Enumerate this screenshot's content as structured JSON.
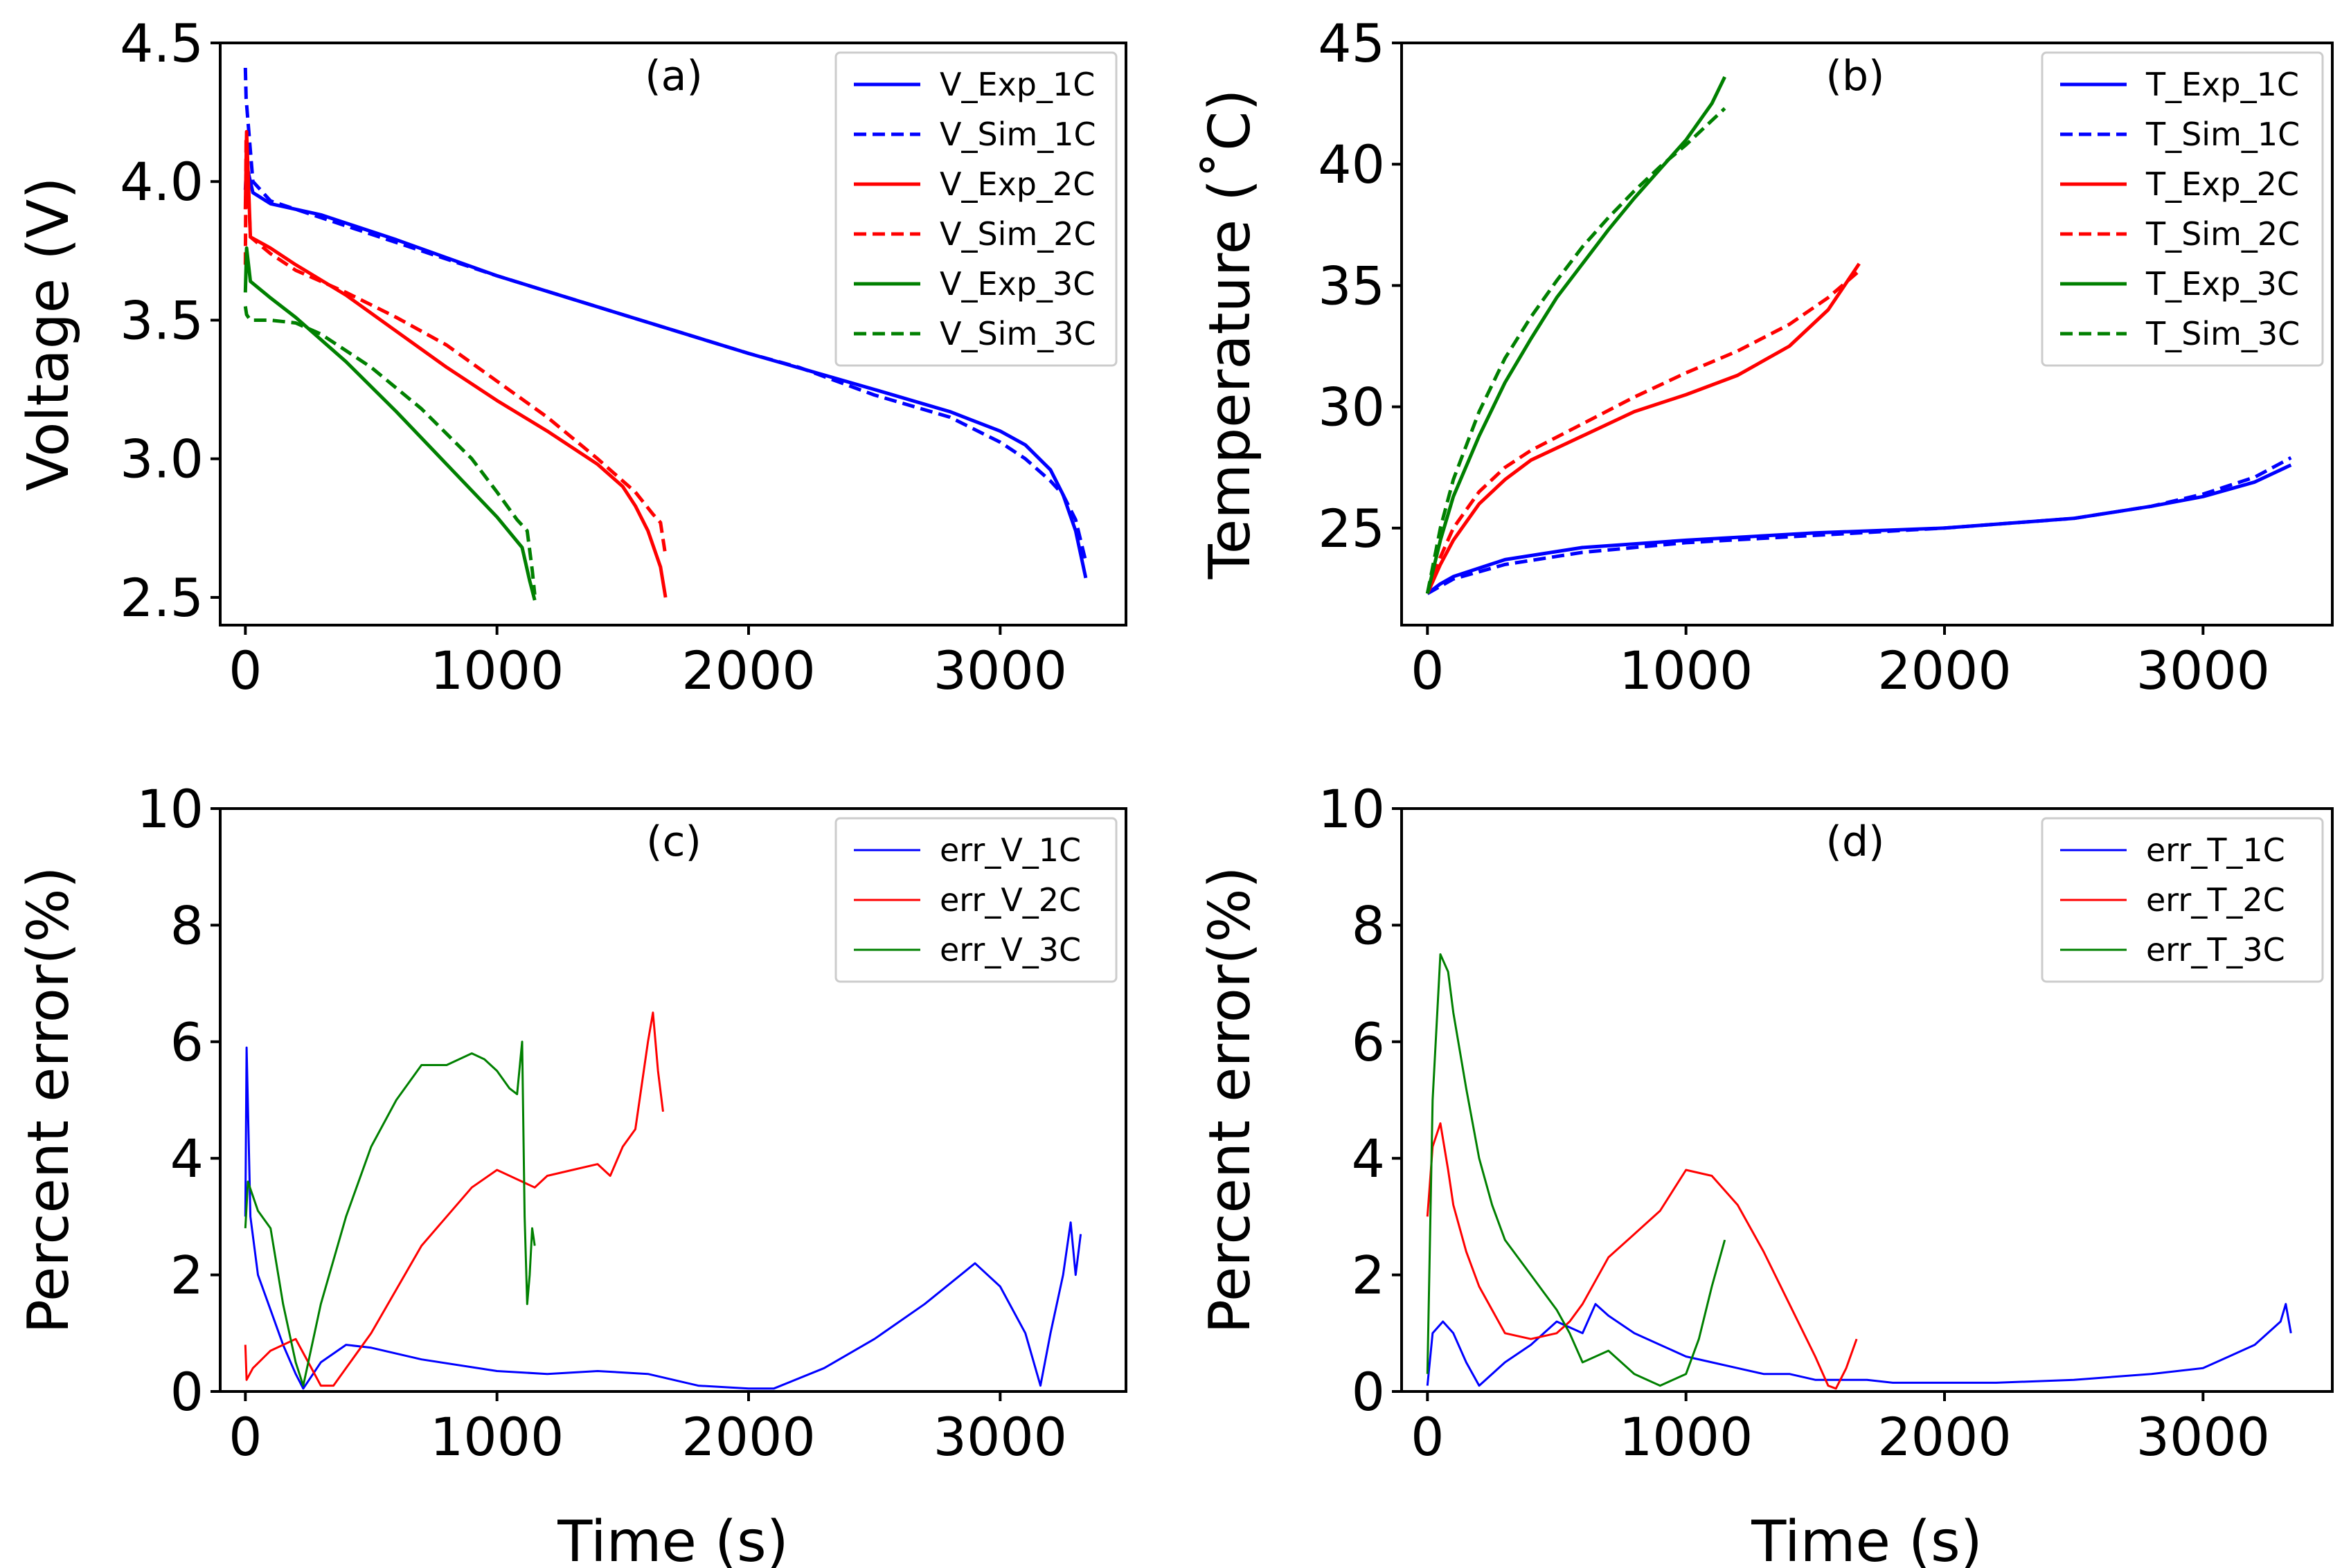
{
  "colors": {
    "1C": "#0000ff",
    "2C": "#ff0000",
    "3C": "#008000"
  },
  "chart_data": [
    {
      "id": "a",
      "type": "line",
      "title": "(a)",
      "xlabel": "",
      "ylabel": "Voltage (V)",
      "xlim": [
        -100,
        3500
      ],
      "ylim": [
        2.4,
        4.5
      ],
      "xticks": [
        0,
        1000,
        2000,
        3000
      ],
      "yticks": [
        2.5,
        3.0,
        3.5,
        4.0,
        4.5
      ],
      "ytick_labels": [
        "2.5",
        "3.0",
        "3.5",
        "4.0",
        "4.5"
      ],
      "legend_position": "top-right",
      "series": [
        {
          "name": "V_Exp_1C",
          "color_key": "1C",
          "style": "solid",
          "x": [
            0,
            5,
            30,
            100,
            300,
            600,
            1000,
            1500,
            2000,
            2500,
            2800,
            3000,
            3100,
            3200,
            3250,
            3300,
            3340
          ],
          "y": [
            3.97,
            4.06,
            3.96,
            3.92,
            3.88,
            3.79,
            3.66,
            3.52,
            3.38,
            3.25,
            3.17,
            3.1,
            3.05,
            2.96,
            2.87,
            2.74,
            2.57
          ]
        },
        {
          "name": "V_Sim_1C",
          "color_key": "1C",
          "style": "dashed",
          "x": [
            0,
            3,
            30,
            100,
            300,
            600,
            1000,
            1500,
            2000,
            2200,
            2500,
            2800,
            3000,
            3100,
            3200,
            3250,
            3300,
            3340
          ],
          "y": [
            4.41,
            4.3,
            4.0,
            3.93,
            3.87,
            3.78,
            3.66,
            3.52,
            3.38,
            3.33,
            3.23,
            3.15,
            3.06,
            3.0,
            2.92,
            2.87,
            2.78,
            2.63
          ]
        },
        {
          "name": "V_Exp_2C",
          "color_key": "2C",
          "style": "solid",
          "x": [
            0,
            5,
            20,
            100,
            200,
            400,
            600,
            800,
            1000,
            1200,
            1400,
            1500,
            1550,
            1600,
            1650,
            1670
          ],
          "y": [
            3.9,
            4.18,
            3.8,
            3.76,
            3.7,
            3.59,
            3.46,
            3.33,
            3.21,
            3.1,
            2.98,
            2.9,
            2.83,
            2.74,
            2.61,
            2.5
          ]
        },
        {
          "name": "V_Sim_2C",
          "color_key": "2C",
          "style": "dashed",
          "x": [
            0,
            3,
            20,
            100,
            200,
            400,
            600,
            800,
            1000,
            1200,
            1400,
            1550,
            1620,
            1650,
            1670
          ],
          "y": [
            3.7,
            4.16,
            3.8,
            3.74,
            3.68,
            3.6,
            3.51,
            3.41,
            3.28,
            3.15,
            3.0,
            2.88,
            2.8,
            2.77,
            2.65
          ]
        },
        {
          "name": "V_Exp_3C",
          "color_key": "3C",
          "style": "solid",
          "x": [
            0,
            5,
            20,
            100,
            200,
            400,
            600,
            800,
            1000,
            1100,
            1130,
            1150
          ],
          "y": [
            3.6,
            3.76,
            3.64,
            3.58,
            3.51,
            3.35,
            3.17,
            2.98,
            2.79,
            2.68,
            2.56,
            2.49
          ]
        },
        {
          "name": "V_Sim_3C",
          "color_key": "3C",
          "style": "dashed",
          "x": [
            0,
            5,
            20,
            100,
            200,
            300,
            500,
            700,
            900,
            1000,
            1080,
            1120,
            1140,
            1150
          ],
          "y": [
            3.55,
            3.52,
            3.5,
            3.5,
            3.49,
            3.45,
            3.33,
            3.18,
            3.0,
            2.88,
            2.78,
            2.74,
            2.6,
            2.51
          ]
        }
      ]
    },
    {
      "id": "b",
      "type": "line",
      "title": "(b)",
      "xlabel": "",
      "ylabel": "Temperature (˚C)",
      "xlim": [
        -100,
        3500
      ],
      "ylim": [
        21,
        45
      ],
      "xticks": [
        0,
        1000,
        2000,
        3000
      ],
      "yticks": [
        25,
        30,
        35,
        40,
        45
      ],
      "ytick_labels": [
        "25",
        "30",
        "35",
        "40",
        "45"
      ],
      "legend_position": "top-right",
      "series": [
        {
          "name": "T_Exp_1C",
          "color_key": "1C",
          "style": "solid",
          "x": [
            0,
            50,
            100,
            300,
            600,
            1000,
            1500,
            2000,
            2500,
            2800,
            3000,
            3200,
            3340
          ],
          "y": [
            22.3,
            22.7,
            23.0,
            23.7,
            24.2,
            24.5,
            24.8,
            25.0,
            25.4,
            25.9,
            26.3,
            26.9,
            27.6
          ]
        },
        {
          "name": "T_Sim_1C",
          "color_key": "1C",
          "style": "dashed",
          "x": [
            0,
            50,
            100,
            300,
            600,
            1000,
            1500,
            2000,
            2500,
            2800,
            3000,
            3200,
            3340
          ],
          "y": [
            22.3,
            22.6,
            22.9,
            23.5,
            24.0,
            24.4,
            24.7,
            25.0,
            25.4,
            25.9,
            26.4,
            27.1,
            27.9
          ]
        },
        {
          "name": "T_Exp_2C",
          "color_key": "2C",
          "style": "solid",
          "x": [
            0,
            50,
            100,
            200,
            300,
            400,
            600,
            800,
            1000,
            1200,
            1400,
            1550,
            1670
          ],
          "y": [
            22.3,
            23.5,
            24.5,
            26.0,
            27.0,
            27.8,
            28.8,
            29.8,
            30.5,
            31.3,
            32.5,
            34.0,
            35.9
          ]
        },
        {
          "name": "T_Sim_2C",
          "color_key": "2C",
          "style": "dashed",
          "x": [
            0,
            50,
            100,
            200,
            300,
            400,
            600,
            800,
            1000,
            1200,
            1400,
            1550,
            1670
          ],
          "y": [
            22.3,
            23.8,
            25.0,
            26.5,
            27.5,
            28.2,
            29.3,
            30.4,
            31.4,
            32.3,
            33.4,
            34.5,
            35.6
          ]
        },
        {
          "name": "T_Exp_3C",
          "color_key": "3C",
          "style": "solid",
          "x": [
            0,
            50,
            100,
            200,
            300,
            400,
            500,
            600,
            700,
            800,
            900,
            1000,
            1100,
            1150
          ],
          "y": [
            22.3,
            24.5,
            26.3,
            28.8,
            31.0,
            32.8,
            34.5,
            35.9,
            37.3,
            38.6,
            39.8,
            41.0,
            42.5,
            43.6
          ]
        },
        {
          "name": "T_Sim_3C",
          "color_key": "3C",
          "style": "dashed",
          "x": [
            0,
            50,
            100,
            200,
            300,
            400,
            500,
            600,
            700,
            800,
            900,
            1000,
            1100,
            1150
          ],
          "y": [
            22.3,
            25.0,
            27.0,
            29.8,
            32.0,
            33.7,
            35.2,
            36.6,
            37.8,
            38.9,
            39.9,
            40.8,
            41.8,
            42.3
          ]
        }
      ]
    },
    {
      "id": "c",
      "type": "line",
      "title": "(c)",
      "xlabel": "Time (s)",
      "ylabel": "Percent error(%)",
      "xlim": [
        -100,
        3500
      ],
      "ylim": [
        0,
        10
      ],
      "xticks": [
        0,
        1000,
        2000,
        3000
      ],
      "yticks": [
        0,
        2,
        4,
        6,
        8,
        10
      ],
      "ytick_labels": [
        "0",
        "2",
        "4",
        "6",
        "8",
        "10"
      ],
      "legend_position": "top-right",
      "series": [
        {
          "name": "err_V_1C",
          "color_key": "1C",
          "style": "thin",
          "x": [
            0,
            5,
            20,
            50,
            100,
            150,
            200,
            230,
            300,
            400,
            500,
            700,
            1000,
            1200,
            1400,
            1600,
            1800,
            2000,
            2100,
            2300,
            2500,
            2700,
            2900,
            3000,
            3100,
            3160,
            3200,
            3250,
            3280,
            3300,
            3320
          ],
          "y": [
            3.0,
            5.9,
            3.0,
            2.0,
            1.4,
            0.8,
            0.3,
            0.05,
            0.5,
            0.8,
            0.75,
            0.55,
            0.35,
            0.3,
            0.35,
            0.3,
            0.1,
            0.05,
            0.05,
            0.4,
            0.9,
            1.5,
            2.2,
            1.8,
            1.0,
            0.1,
            1.0,
            2.0,
            2.9,
            2.0,
            2.7
          ]
        },
        {
          "name": "err_V_2C",
          "color_key": "2C",
          "style": "thin",
          "x": [
            0,
            5,
            30,
            100,
            200,
            250,
            300,
            350,
            500,
            700,
            900,
            1000,
            1100,
            1150,
            1200,
            1300,
            1400,
            1450,
            1500,
            1550,
            1600,
            1620,
            1640,
            1660
          ],
          "y": [
            0.8,
            0.2,
            0.4,
            0.7,
            0.9,
            0.5,
            0.1,
            0.1,
            1.0,
            2.5,
            3.5,
            3.8,
            3.6,
            3.5,
            3.7,
            3.8,
            3.9,
            3.7,
            4.2,
            4.5,
            6.0,
            6.5,
            5.5,
            4.8
          ]
        },
        {
          "name": "err_V_3C",
          "color_key": "3C",
          "style": "thin",
          "x": [
            0,
            10,
            50,
            100,
            150,
            200,
            230,
            300,
            400,
            500,
            600,
            700,
            800,
            900,
            950,
            1000,
            1050,
            1080,
            1100,
            1110,
            1120,
            1130,
            1140,
            1150
          ],
          "y": [
            2.8,
            3.6,
            3.1,
            2.8,
            1.5,
            0.5,
            0.1,
            1.5,
            3.0,
            4.2,
            5.0,
            5.6,
            5.6,
            5.8,
            5.7,
            5.5,
            5.2,
            5.1,
            6.0,
            3.0,
            1.5,
            2.0,
            2.8,
            2.5
          ]
        }
      ]
    },
    {
      "id": "d",
      "type": "line",
      "title": "(d)",
      "xlabel": "Time (s)",
      "ylabel": "Percent error(%)",
      "xlim": [
        -100,
        3500
      ],
      "ylim": [
        0,
        10
      ],
      "xticks": [
        0,
        1000,
        2000,
        3000
      ],
      "yticks": [
        0,
        2,
        4,
        6,
        8,
        10
      ],
      "ytick_labels": [
        "0",
        "2",
        "4",
        "6",
        "8",
        "10"
      ],
      "legend_position": "top-right",
      "series": [
        {
          "name": "err_T_1C",
          "color_key": "1C",
          "style": "thin",
          "x": [
            0,
            20,
            60,
            100,
            150,
            200,
            300,
            400,
            500,
            600,
            650,
            700,
            800,
            900,
            1000,
            1100,
            1200,
            1300,
            1400,
            1500,
            1600,
            1700,
            1800,
            2000,
            2200,
            2500,
            2800,
            3000,
            3100,
            3200,
            3300,
            3320,
            3340
          ],
          "y": [
            0.1,
            1.0,
            1.2,
            1.0,
            0.5,
            0.1,
            0.5,
            0.8,
            1.2,
            1.0,
            1.5,
            1.3,
            1.0,
            0.8,
            0.6,
            0.5,
            0.4,
            0.3,
            0.3,
            0.2,
            0.2,
            0.2,
            0.15,
            0.15,
            0.15,
            0.2,
            0.3,
            0.4,
            0.6,
            0.8,
            1.2,
            1.5,
            1.0
          ]
        },
        {
          "name": "err_T_2C",
          "color_key": "2C",
          "style": "thin",
          "x": [
            0,
            20,
            50,
            80,
            100,
            150,
            200,
            300,
            400,
            500,
            550,
            600,
            700,
            800,
            900,
            1000,
            1100,
            1200,
            1300,
            1400,
            1500,
            1550,
            1580,
            1620,
            1660
          ],
          "y": [
            3.0,
            4.2,
            4.6,
            3.8,
            3.2,
            2.4,
            1.8,
            1.0,
            0.9,
            1.0,
            1.2,
            1.5,
            2.3,
            2.7,
            3.1,
            3.8,
            3.7,
            3.2,
            2.4,
            1.5,
            0.6,
            0.1,
            0.05,
            0.4,
            0.9
          ]
        },
        {
          "name": "err_T_3C",
          "color_key": "3C",
          "style": "thin",
          "x": [
            0,
            20,
            50,
            80,
            100,
            150,
            200,
            250,
            300,
            400,
            450,
            500,
            550,
            600,
            700,
            800,
            900,
            1000,
            1050,
            1100,
            1150
          ],
          "y": [
            0.3,
            5.0,
            7.5,
            7.2,
            6.5,
            5.2,
            4.0,
            3.2,
            2.6,
            2.0,
            1.7,
            1.4,
            1.0,
            0.5,
            0.7,
            0.3,
            0.1,
            0.3,
            0.9,
            1.8,
            2.6
          ]
        }
      ]
    }
  ]
}
